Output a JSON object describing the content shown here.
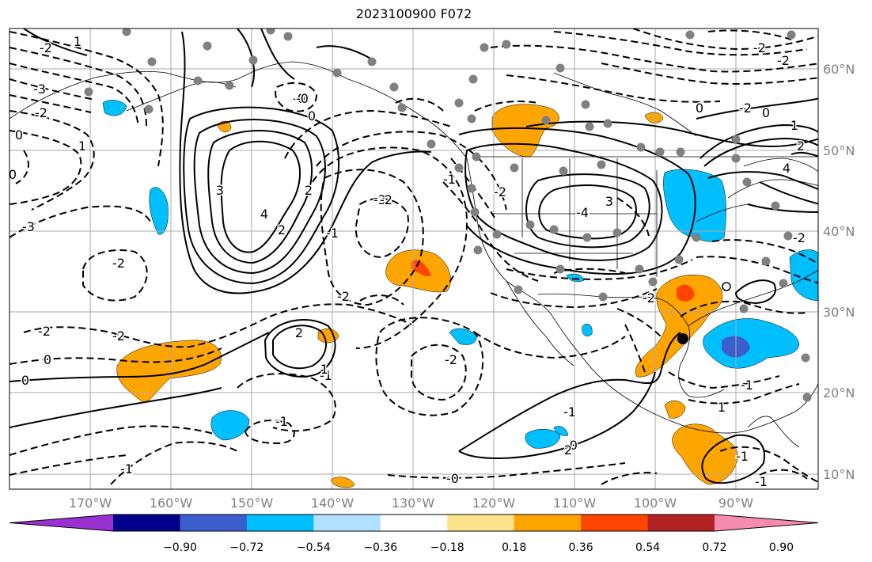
{
  "title": "2023100900 F072",
  "map": {
    "lat_labels": [
      "60°N",
      "50°N",
      "40°N",
      "30°N",
      "20°N",
      "10°N"
    ],
    "lon_labels": [
      "170°W",
      "160°W",
      "150°W",
      "140°W",
      "130°W",
      "120°W",
      "110°W",
      "100°W",
      "90°W"
    ]
  },
  "colorbar": {
    "colors": [
      "#9b30d0",
      "#00008b",
      "#3a5fcd",
      "#00bfff",
      "#b0e2ff",
      "#ffffff",
      "#fce38a",
      "#ffa500",
      "#ff4500",
      "#b22222",
      "#f58bae"
    ],
    "tick_labels": [
      "−0.90",
      "−0.72",
      "−0.54",
      "−0.36",
      "−0.18",
      "0.18",
      "0.36",
      "0.54",
      "0.72",
      "0.90"
    ]
  },
  "contour_labels": [
    "-2",
    "1",
    "-3",
    "-2",
    "0",
    "1",
    "0",
    "3",
    "4",
    "2",
    "0",
    "-0",
    "-3",
    "-3",
    "-2",
    "-2",
    "-2",
    "-1",
    "0",
    "2",
    "-2",
    "-1",
    "-1",
    "-1",
    "-2",
    "-0",
    "-1",
    "-2",
    "-4",
    "3",
    "2",
    "1",
    "-0",
    "-1",
    "-2",
    "0",
    "1",
    "2",
    "4",
    "-2",
    "-2",
    "-2",
    "0",
    "1",
    "2",
    "-1",
    "-1",
    "-1",
    "0",
    "-0",
    "-2",
    "-2"
  ],
  "station_count": 60
}
